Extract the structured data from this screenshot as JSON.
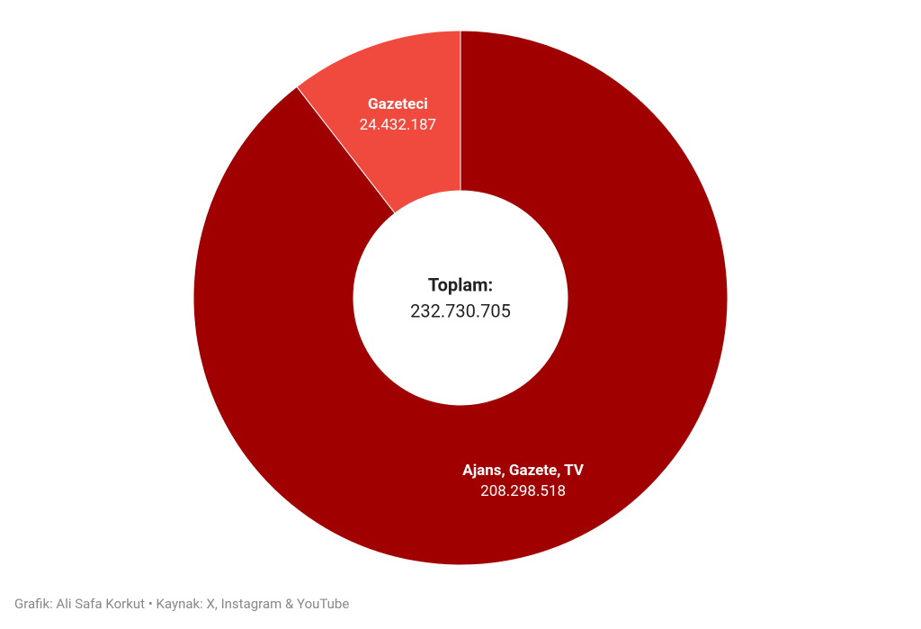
{
  "chart_data": {
    "type": "donut",
    "categories": [
      "Ajans, Gazete, TV",
      "Gazeteci"
    ],
    "values": [
      208298518,
      24432187
    ],
    "value_labels": [
      "208.298.518",
      "24.432.187"
    ],
    "colors": [
      "#a00000",
      "#f04a3e"
    ],
    "center_title": "Toplam:",
    "center_text": "232.730.705",
    "caption": "Grafik: Ali Safa Korkut • Kaynak: X, Instagram & YouTube"
  }
}
